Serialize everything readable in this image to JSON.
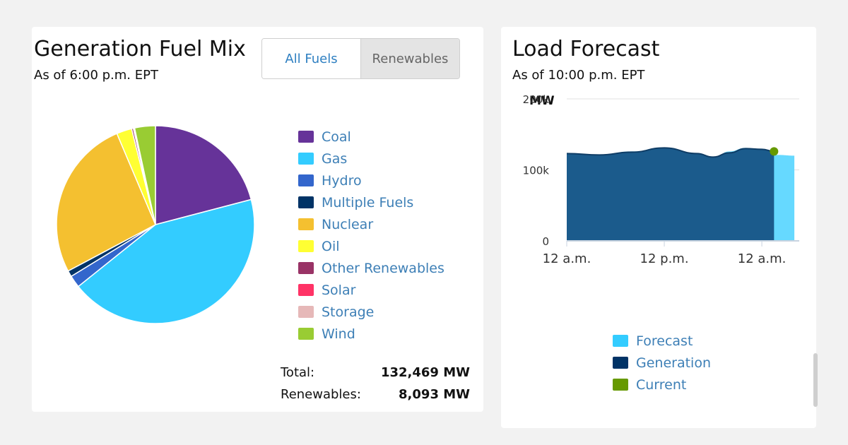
{
  "fuel_mix": {
    "title": "Generation Fuel Mix",
    "subtitle": "As of 6:00 p.m. EPT",
    "toggle": {
      "all_fuels": "All Fuels",
      "renewables": "Renewables",
      "selected": "All Fuels"
    },
    "legend": [
      {
        "label": "Coal",
        "color": "#663399"
      },
      {
        "label": "Gas",
        "color": "#33ccff"
      },
      {
        "label": "Hydro",
        "color": "#3366cc"
      },
      {
        "label": "Multiple Fuels",
        "color": "#003366"
      },
      {
        "label": "Nuclear",
        "color": "#f4c030"
      },
      {
        "label": "Oil",
        "color": "#ffff33"
      },
      {
        "label": "Other Renewables",
        "color": "#993366"
      },
      {
        "label": "Solar",
        "color": "#ff3366"
      },
      {
        "label": "Storage",
        "color": "#e6b8b8"
      },
      {
        "label": "Wind",
        "color": "#99cc33"
      }
    ],
    "totals": {
      "total_label": "Total:",
      "total_value": "132,469 MW",
      "renewables_label": "Renewables:",
      "renewables_value": "8,093 MW"
    }
  },
  "load_forecast": {
    "title": "Load Forecast",
    "subtitle": "As of 10:00 p.m. EPT",
    "legend": [
      {
        "label": "Forecast",
        "color": "#33ccff"
      },
      {
        "label": "Generation",
        "color": "#003366"
      },
      {
        "label": "Current",
        "color": "#669900"
      }
    ]
  },
  "chart_data": [
    {
      "type": "pie",
      "title": "Generation Fuel Mix",
      "categories": [
        "Coal",
        "Gas",
        "Hydro",
        "Multiple Fuels",
        "Nuclear",
        "Oil",
        "Other Renewables",
        "Solar",
        "Storage",
        "Wind"
      ],
      "values": [
        21.0,
        43.5,
        2.0,
        1.0,
        26.5,
        2.5,
        0.3,
        0.1,
        0.1,
        3.4
      ],
      "unit": "%",
      "start_angle_deg": 0,
      "direction": "clockwise"
    },
    {
      "type": "area",
      "title": "Load Forecast",
      "ylabel": "MW",
      "ylim": [
        0,
        200000
      ],
      "yticks": [
        0,
        100000,
        200000
      ],
      "ytick_labels": [
        "0",
        "100k",
        "200k"
      ],
      "xlim": [
        0,
        48
      ],
      "xticks": [
        0,
        12,
        24
      ],
      "xtick_labels": [
        "12 a.m.",
        "12 p.m.",
        "12 a.m."
      ],
      "grid": true,
      "series": [
        {
          "name": "Forecast",
          "x": [
            0,
            4,
            8,
            12,
            16,
            18,
            20,
            22,
            24,
            26,
            28
          ],
          "values": [
            122000,
            121000,
            126000,
            130000,
            122000,
            116000,
            126000,
            131000,
            128000,
            121000,
            120000
          ]
        },
        {
          "name": "Generation",
          "x": [
            0,
            4,
            8,
            12,
            16,
            18,
            20,
            22,
            24,
            25.5
          ],
          "values": [
            123000,
            121000,
            125000,
            131000,
            123000,
            118000,
            124000,
            130000,
            129000,
            126000
          ]
        },
        {
          "name": "Current",
          "x": [
            25.5
          ],
          "values": [
            126000
          ]
        }
      ]
    }
  ]
}
